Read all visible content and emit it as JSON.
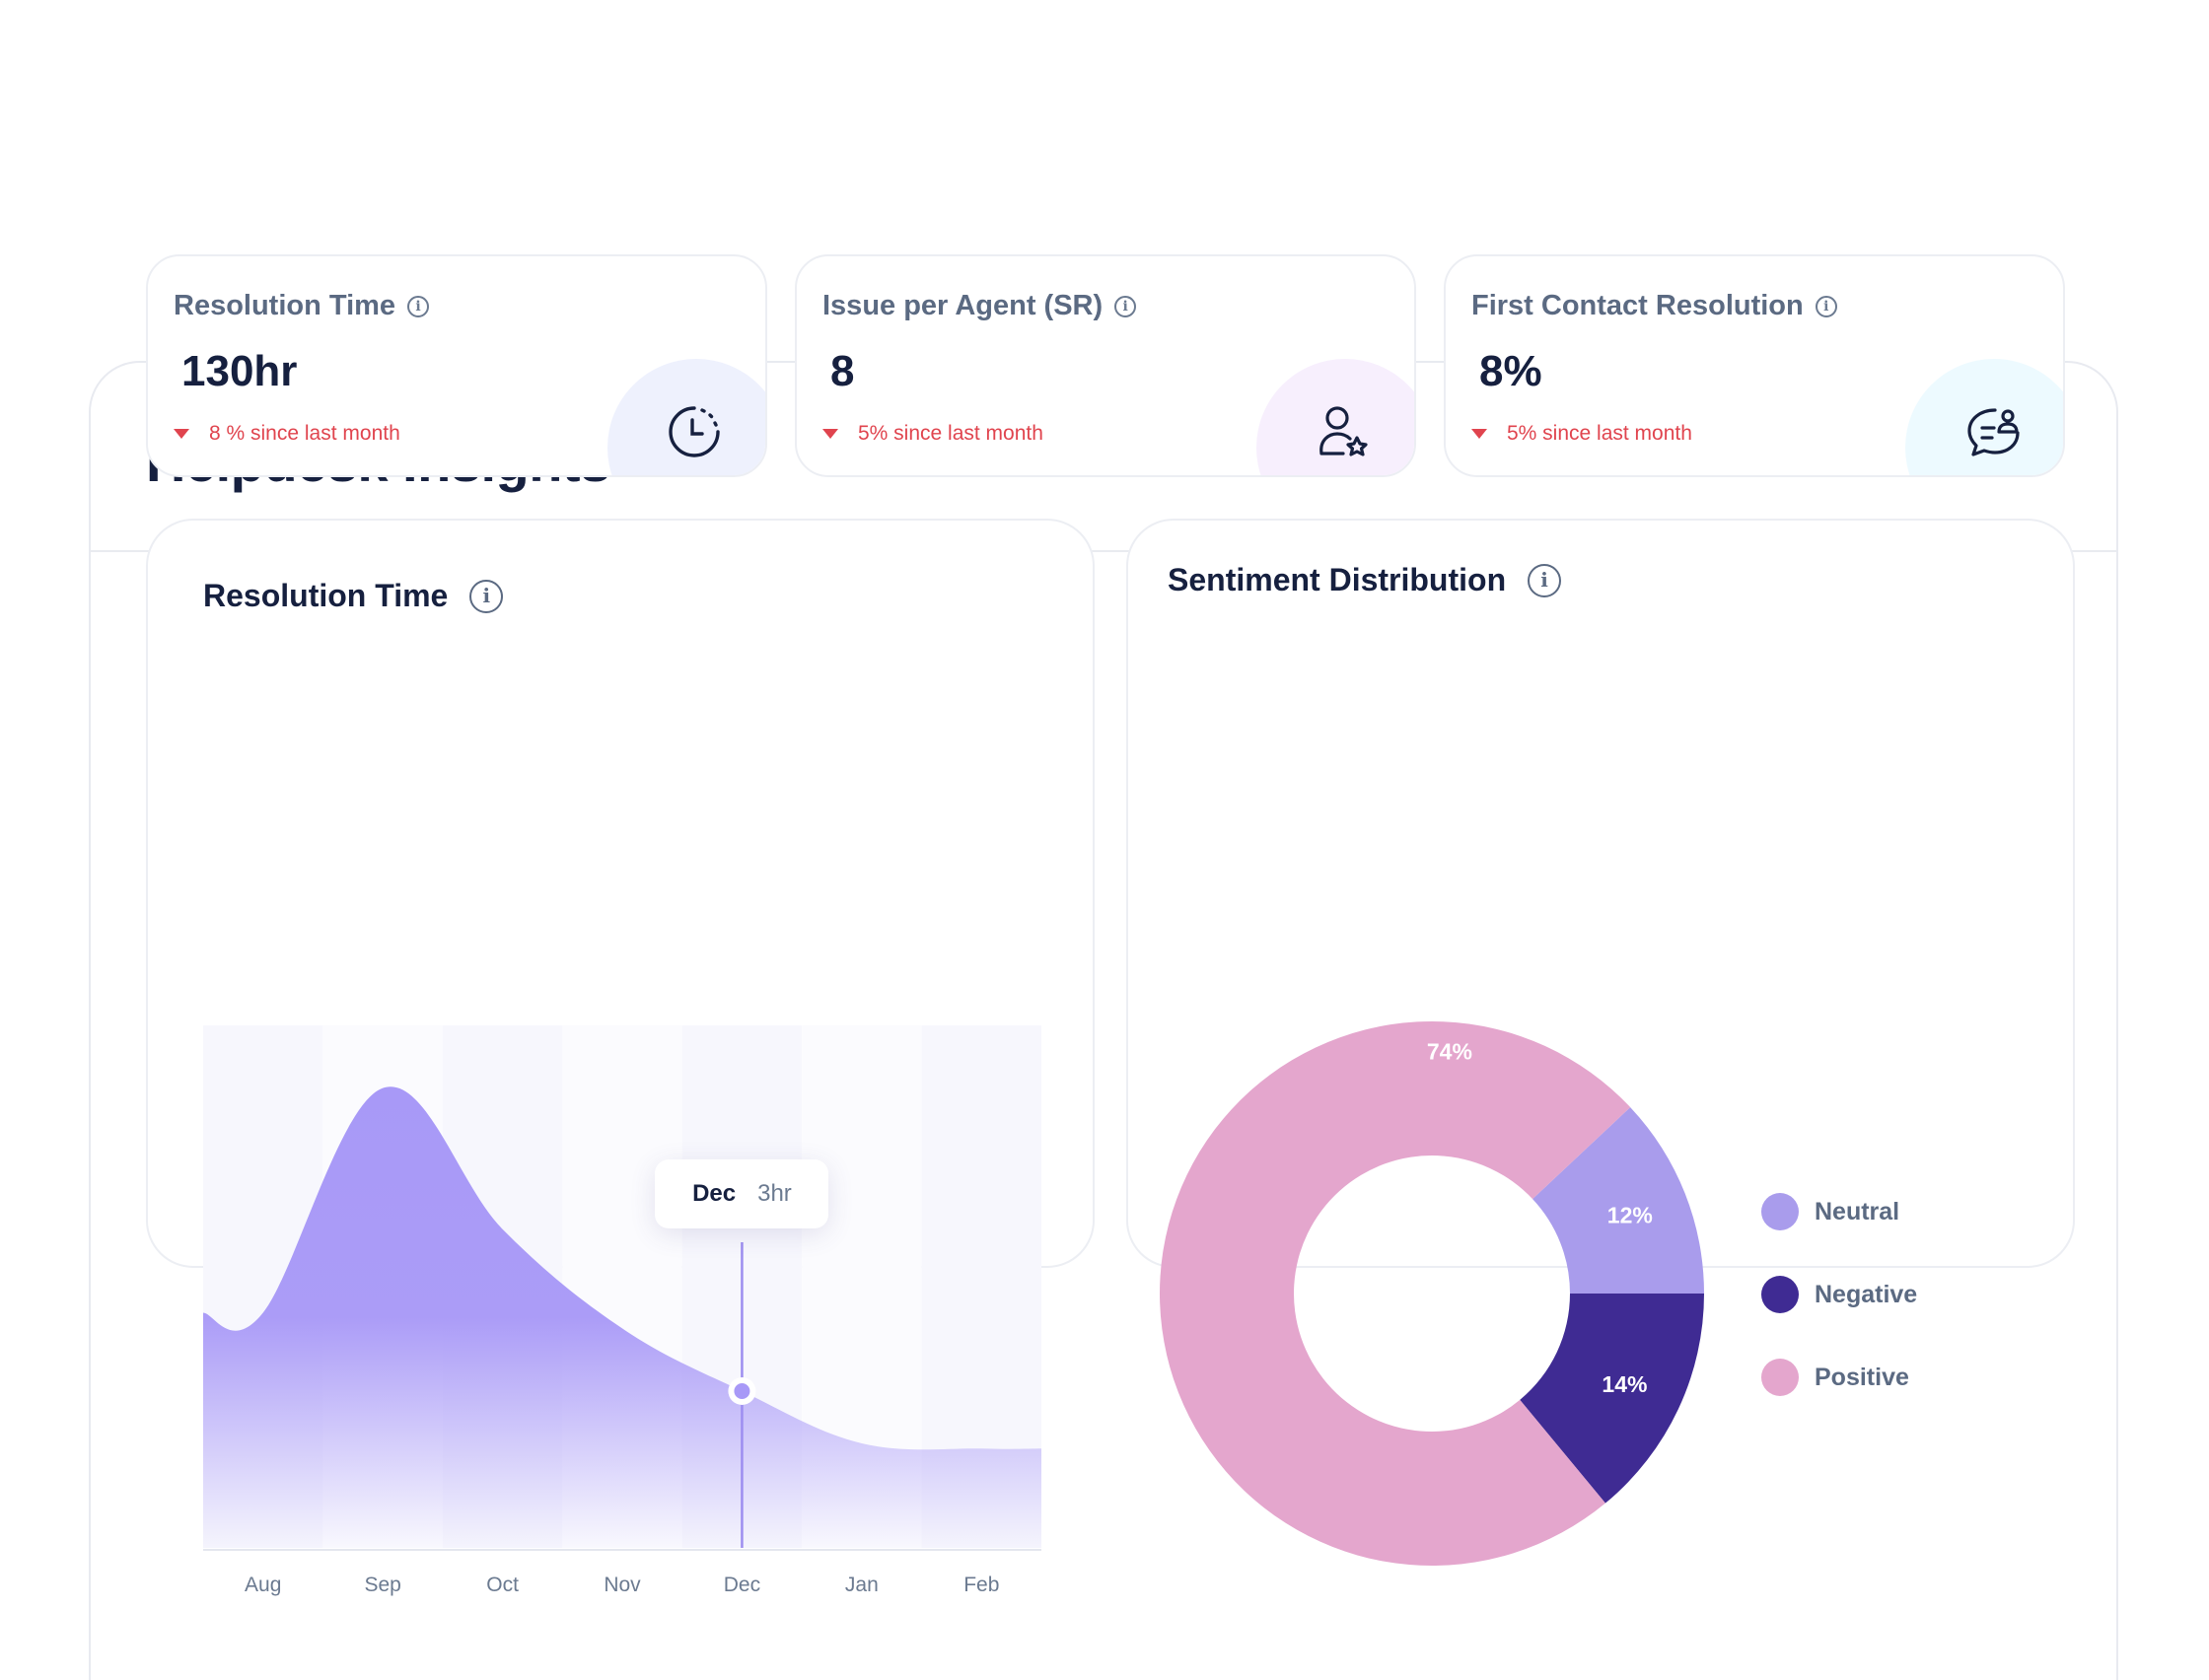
{
  "header": {
    "title": "Helpdesk Insights"
  },
  "kpis": [
    {
      "label": "Resolution Time",
      "value": "130hr",
      "change": "8 % since last month",
      "icon": "clock-icon",
      "blob_color": "#eef1fd"
    },
    {
      "label": "Issue per Agent (SR)",
      "value": "8",
      "change": "5% since last month",
      "icon": "user-star-icon",
      "blob_color": "#f7effd"
    },
    {
      "label": "First Contact Resolution",
      "value": "8%",
      "change": "5% since last month",
      "icon": "chat-user-icon",
      "blob_color": "#edfaff"
    }
  ],
  "resolution_chart": {
    "title": "Resolution Time",
    "tooltip": {
      "month": "Dec",
      "value": "3hr"
    },
    "chart_data": {
      "type": "area",
      "categories": [
        "Aug",
        "Sep",
        "Oct",
        "Nov",
        "Dec",
        "Jan",
        "Feb"
      ],
      "values": [
        4.5,
        8.8,
        6.1,
        4.2,
        3.0,
        2.0,
        1.9
      ],
      "ylim": [
        0,
        10
      ],
      "highlight": "Dec",
      "color": "#a899f7"
    }
  },
  "sentiment_chart": {
    "title": "Sentiment Distribution",
    "chart_data": {
      "type": "pie",
      "slices": [
        {
          "name": "Neutral",
          "value": 12,
          "label": "12%",
          "color": "#a99cec"
        },
        {
          "name": "Negative",
          "value": 14,
          "label": "14%",
          "color": "#3f2b93"
        },
        {
          "name": "Positive",
          "value": 74,
          "label": "74%",
          "color": "#e4a6cd"
        }
      ],
      "legend_position": "right"
    }
  }
}
